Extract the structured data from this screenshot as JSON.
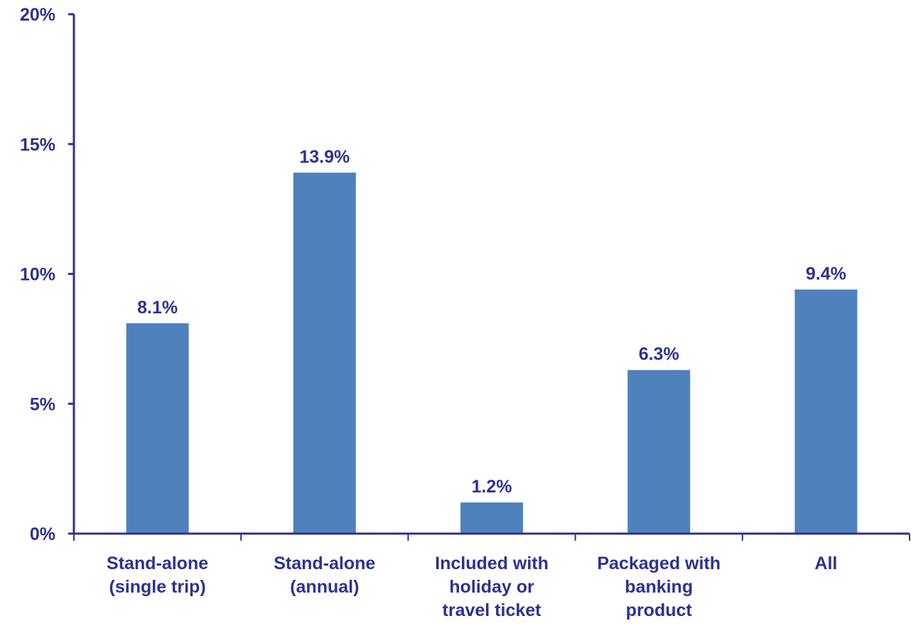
{
  "chart_data": {
    "type": "bar",
    "categories": [
      [
        "Stand-alone",
        "(single trip)"
      ],
      [
        "Stand-alone",
        "(annual)"
      ],
      [
        "Included with",
        "holiday or",
        "travel ticket"
      ],
      [
        "Packaged with",
        "banking",
        "product"
      ],
      [
        "All"
      ]
    ],
    "values": [
      8.1,
      13.9,
      1.2,
      6.3,
      9.4
    ],
    "data_labels": [
      "8.1%",
      "13.9%",
      "1.2%",
      "6.3%",
      "9.4%"
    ],
    "title": "",
    "xlabel": "",
    "ylabel": "",
    "ylim": [
      0,
      20
    ],
    "yticks": [
      0,
      5,
      10,
      15,
      20
    ],
    "ytick_labels": [
      "0%",
      "5%",
      "10%",
      "15%",
      "20%"
    ],
    "grid": false,
    "legend": "none",
    "colors": {
      "bar": "#4f81bd",
      "axis": "#2e3192",
      "text": "#2e3192"
    }
  }
}
